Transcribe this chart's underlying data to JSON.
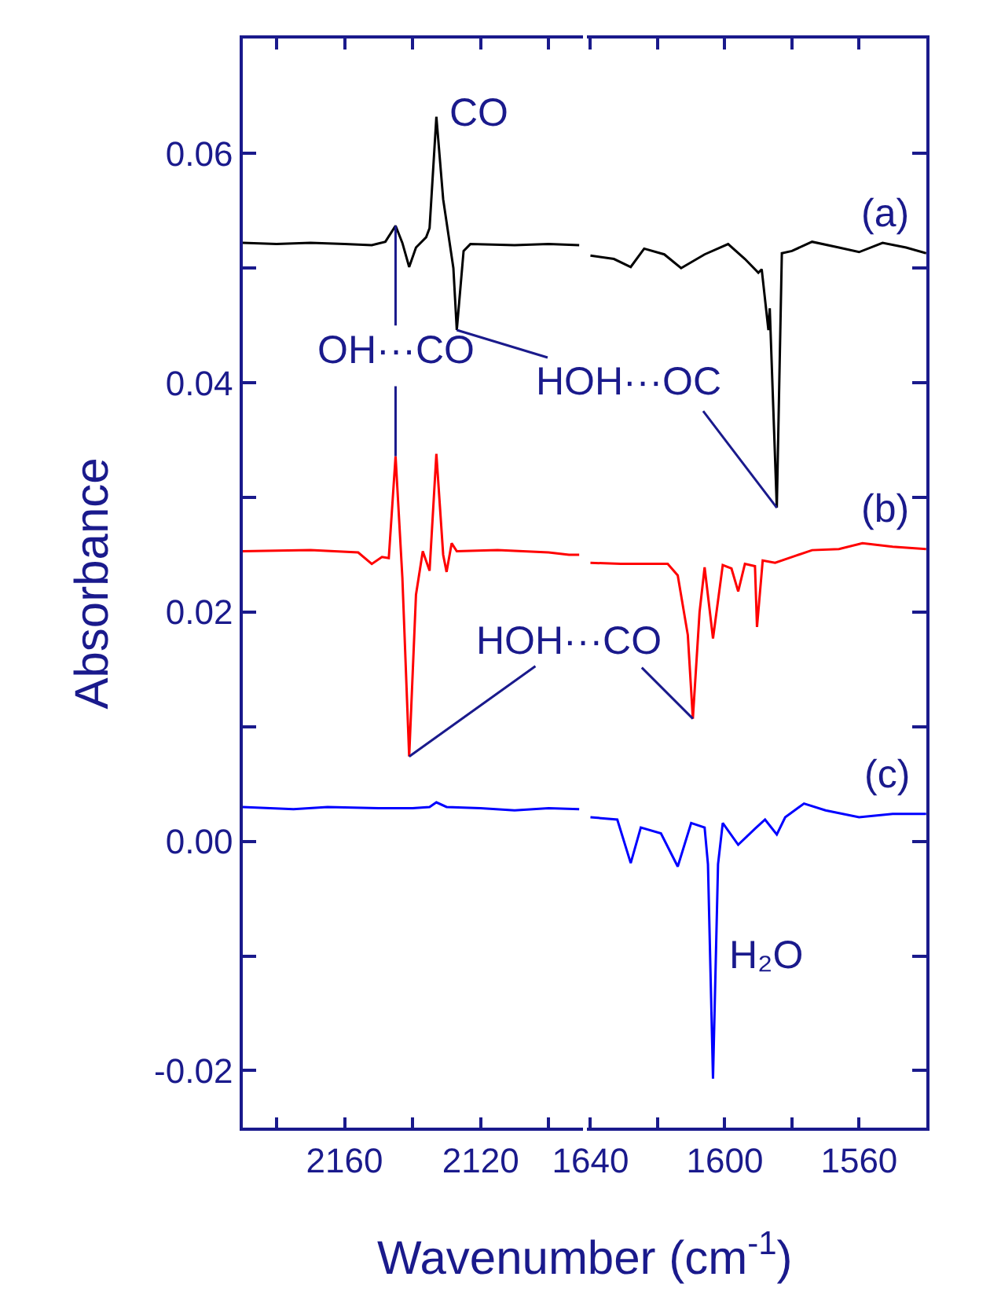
{
  "chart_data": [
    {
      "type": "line",
      "xlabel": "Wavenumber (cm$^{-1}$)",
      "ylabel": "Absorbance",
      "xlim": [
        2190,
        2090
      ],
      "ylim": [
        -0.025,
        0.07
      ],
      "xticks": [
        {
          "value": 2180,
          "label": null
        },
        2160,
        {
          "value": 2140,
          "label": null
        },
        2120,
        {
          "value": 2100,
          "label": null
        }
      ],
      "yticks": [
        {
          "value": -0.01,
          "label": null
        },
        -0.02,
        {
          "value": 0,
          "label": "0.00"
        },
        {
          "value": 0.01,
          "label": null
        },
        0.02,
        {
          "value": 0.03,
          "label": null
        },
        0.04,
        {
          "value": 0.05,
          "label": null
        },
        0.06
      ],
      "series": [
        {
          "color": "#000000",
          "x": [
            2190,
            2180,
            2170,
            2160,
            2152,
            2148,
            2145,
            2143,
            2141,
            2139,
            2136,
            2135,
            2133,
            2131,
            2129,
            2128,
            2127,
            2125,
            2123,
            2110,
            2100,
            2091
          ],
          "values": [
            0.0522,
            0.0521,
            0.0522,
            0.0521,
            0.052,
            0.0523,
            0.0537,
            0.0522,
            0.0501,
            0.0518,
            0.0527,
            0.0535,
            0.0632,
            0.056,
            0.052,
            0.05,
            0.0446,
            0.0515,
            0.0521,
            0.052,
            0.0521,
            0.052
          ]
        },
        {
          "color": "#ff0000",
          "x": [
            2190,
            2170,
            2156,
            2152,
            2149,
            2147,
            2145,
            2143,
            2141,
            2139,
            2137,
            2135,
            2133,
            2131,
            2130,
            2128.5,
            2127,
            2115,
            2100,
            2094,
            2091
          ],
          "values": [
            0.0253,
            0.0254,
            0.0252,
            0.0242,
            0.0248,
            0.0247,
            0.0336,
            0.023,
            0.0074,
            0.0215,
            0.0253,
            0.0236,
            0.0338,
            0.025,
            0.0235,
            0.026,
            0.0253,
            0.0254,
            0.0252,
            0.025,
            0.025
          ]
        },
        {
          "color": "#0000ff",
          "x": [
            2190,
            2175,
            2165,
            2150,
            2140,
            2135,
            2133,
            2130,
            2120,
            2110,
            2100,
            2091
          ],
          "values": [
            0.003,
            0.0028,
            0.003,
            0.0029,
            0.0029,
            0.003,
            0.0034,
            0.003,
            0.0029,
            0.0027,
            0.0029,
            0.0028
          ]
        }
      ],
      "annotations": [
        {
          "text": "CO",
          "x": 2133,
          "y": 0.0632
        },
        {
          "text": "OH···CO",
          "x": 2145,
          "y": 0.0537
        },
        {
          "text": "HOH···OC",
          "x": 2127,
          "y": 0.0446
        },
        {
          "text": "HOH···CO",
          "x": 2141,
          "y": 0.0074
        }
      ]
    },
    {
      "type": "line",
      "xlim": [
        1641,
        1540
      ],
      "ylim": [
        -0.025,
        0.07
      ],
      "xticks": [
        1640,
        {
          "value": 1620,
          "label": null
        },
        1600,
        {
          "value": 1580,
          "label": null
        },
        1560
      ],
      "yticks": [
        {
          "value": -0.02,
          "label": null
        },
        {
          "value": -0.01,
          "label": null
        },
        {
          "value": 0,
          "label": null
        },
        {
          "value": 0.01,
          "label": null
        },
        {
          "value": 0.02,
          "label": null
        },
        {
          "value": 0.03,
          "label": null
        },
        {
          "value": 0.04,
          "label": null
        },
        {
          "value": 0.05,
          "label": null
        },
        {
          "value": 0.06,
          "label": null
        }
      ],
      "tick_labels": "x",
      "series": [
        {
          "name": "(a)",
          "color": "#000000",
          "x": [
            1640,
            1633,
            1628,
            1624,
            1618,
            1613,
            1606,
            1599,
            1594,
            1590,
            1589,
            1587,
            1586.6,
            1584.5,
            1583,
            1580,
            1574,
            1566,
            1560,
            1553,
            1546,
            1540
          ],
          "values": [
            0.0511,
            0.0508,
            0.0501,
            0.0517,
            0.0512,
            0.05,
            0.0512,
            0.0521,
            0.0508,
            0.0496,
            0.0499,
            0.0446,
            0.0465,
            0.0291,
            0.0513,
            0.0515,
            0.0523,
            0.0518,
            0.0514,
            0.0522,
            0.0518,
            0.0513
          ]
        },
        {
          "name": "(b)",
          "color": "#ff0000",
          "x": [
            1640,
            1631,
            1617,
            1614,
            1611,
            1609.5,
            1607.5,
            1606,
            1603.5,
            1600.6,
            1598,
            1596,
            1594,
            1591,
            1590.4,
            1588.7,
            1585,
            1579,
            1574,
            1566,
            1559,
            1550,
            1540
          ],
          "values": [
            0.0243,
            0.0242,
            0.0242,
            0.0232,
            0.018,
            0.0107,
            0.02,
            0.0239,
            0.0177,
            0.0241,
            0.0238,
            0.0218,
            0.0242,
            0.024,
            0.0187,
            0.0245,
            0.0243,
            0.0249,
            0.0254,
            0.0255,
            0.026,
            0.0257,
            0.0255
          ]
        },
        {
          "name": "(c)",
          "color": "#0000ff",
          "x": [
            1640,
            1632,
            1628,
            1625,
            1619,
            1614,
            1610,
            1606,
            1605,
            1603.5,
            1602,
            1600.6,
            1596,
            1591,
            1588,
            1584.5,
            1582,
            1576.4,
            1570,
            1560,
            1550,
            1540
          ],
          "values": [
            0.0021,
            0.0019,
            -0.0019,
            0.0012,
            0.0007,
            -0.0022,
            0.0016,
            0.0012,
            -0.002,
            -0.0207,
            -0.002,
            0.0016,
            -0.0003,
            0.0011,
            0.0019,
            0.0006,
            0.0021,
            0.0033,
            0.0027,
            0.0021,
            0.0024,
            0.0024
          ]
        }
      ],
      "annotations": [
        {
          "text": "H₂O",
          "x": 1603.5,
          "y": -0.0207
        }
      ]
    }
  ]
}
